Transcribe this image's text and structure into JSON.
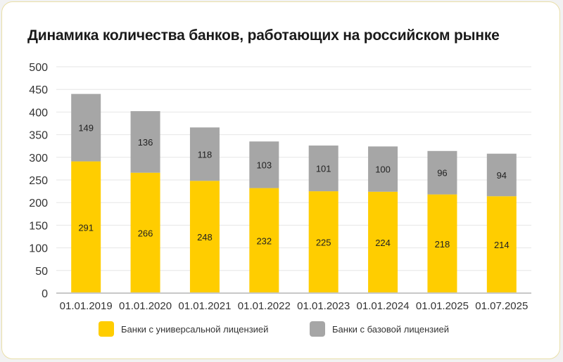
{
  "title": "Динамика количества банков, работающих на российском рынке",
  "colors": {
    "universal": "#FFCD00",
    "basic": "#A6A6A6",
    "grid": "#e6e6e6",
    "axis": "#c8c8c8",
    "text": "#333333"
  },
  "chart_data": {
    "type": "bar",
    "stacked": true,
    "title": "Динамика количества банков, работающих на российском рынке",
    "categories": [
      "01.01.2019",
      "01.01.2020",
      "01.01.2021",
      "01.01.2022",
      "01.01.2023",
      "01.01.2024",
      "01.01.2025",
      "01.07.2025"
    ],
    "series": [
      {
        "name": "Банки с универсальной лицензией",
        "values": [
          291,
          266,
          248,
          232,
          225,
          224,
          218,
          214
        ]
      },
      {
        "name": "Банки с базовой лицензией",
        "values": [
          149,
          136,
          118,
          103,
          101,
          100,
          96,
          94
        ]
      }
    ],
    "ylim": [
      0,
      500
    ],
    "yticks": [
      0,
      50,
      100,
      150,
      200,
      250,
      300,
      350,
      400,
      450,
      500
    ],
    "grid": true,
    "legend_position": "bottom"
  },
  "legend": [
    {
      "label": "Банки с универсальной лицензией",
      "color_key": "universal"
    },
    {
      "label": "Банки с базовой лицензией",
      "color_key": "basic"
    }
  ]
}
